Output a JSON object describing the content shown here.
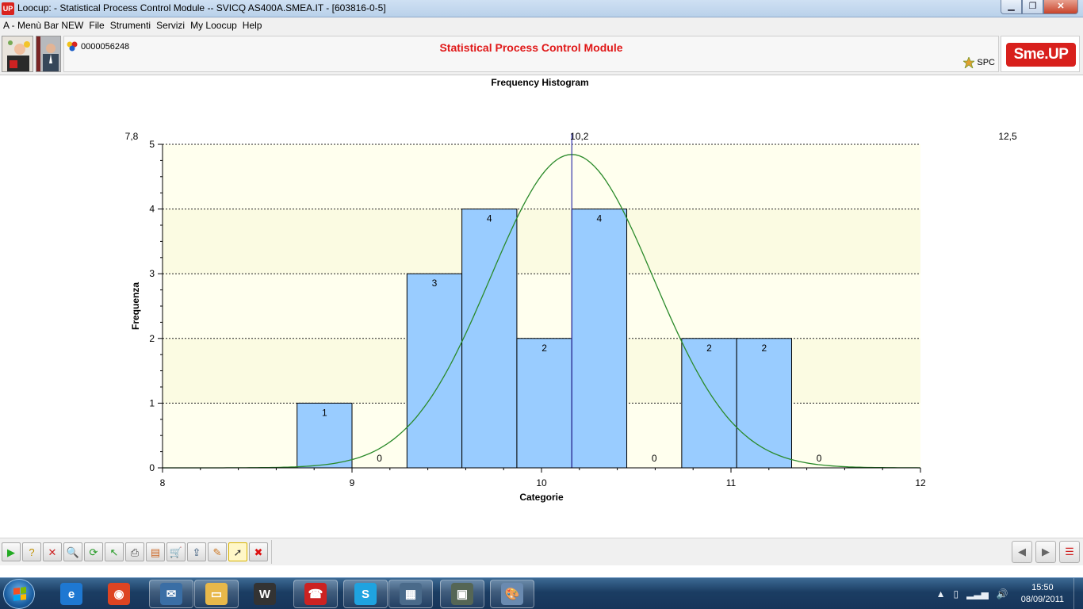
{
  "window": {
    "app_icon_text": "UP",
    "title": "Loocup:  - Statistical Process Control Module -- SVICQ AS400A.SMEA.IT - [603816-0-5]",
    "minimize_label": "▁",
    "maximize_label": "❐",
    "close_label": "✕"
  },
  "menubar": {
    "items": [
      "A - Menù Bar NEW",
      "File",
      "Strumenti",
      "Servizi",
      "My Loocup",
      "Help"
    ]
  },
  "header": {
    "session_id": "0000056248",
    "module_title": "Statistical Process Control Module",
    "spc_label": "SPC",
    "logo_text": "Sme.UP"
  },
  "chart_data": {
    "type": "bar",
    "title": "Frequency Histogram",
    "xlabel": "Categorie",
    "ylabel": "Frequenza",
    "xlim": [
      8,
      12
    ],
    "ylim": [
      0,
      5
    ],
    "x_ticks": [
      8,
      9,
      10,
      11,
      12
    ],
    "y_ticks": [
      0,
      1,
      2,
      3,
      4,
      5
    ],
    "bin_width": 0.29,
    "bins": [
      {
        "start": 8.71,
        "end": 9.0,
        "count": 1
      },
      {
        "start": 9.0,
        "end": 9.29,
        "count": 0
      },
      {
        "start": 9.29,
        "end": 9.58,
        "count": 3
      },
      {
        "start": 9.58,
        "end": 9.87,
        "count": 4
      },
      {
        "start": 9.87,
        "end": 10.16,
        "count": 2
      },
      {
        "start": 10.16,
        "end": 10.45,
        "count": 4
      },
      {
        "start": 10.45,
        "end": 10.74,
        "count": 0
      },
      {
        "start": 10.74,
        "end": 11.03,
        "count": 2
      },
      {
        "start": 11.03,
        "end": 11.32,
        "count": 2
      },
      {
        "start": 11.32,
        "end": 11.61,
        "count": 0
      }
    ],
    "mean": 10.16,
    "std_dev": 0.43,
    "top_labels": [
      {
        "text": "7,8",
        "x": 7.8
      },
      {
        "text": "10,2",
        "x": 10.2
      },
      {
        "text": "12,5",
        "x": 12.5
      }
    ],
    "normal_curve": true,
    "grid": "horizontal dotted",
    "colors": {
      "bar": "#99ccff",
      "curve": "#2a8a2a",
      "mean_line": "#3333aa",
      "band_light": "#ffffee",
      "band_dark": "#fbfbe2"
    }
  },
  "toolbar": {
    "buttons": [
      {
        "name": "execute-button",
        "glyph": "▶",
        "color": "#22aa22"
      },
      {
        "name": "help-button",
        "glyph": "?",
        "color": "#c09000"
      },
      {
        "name": "cancel-button",
        "glyph": "✕",
        "color": "#cc2222"
      },
      {
        "name": "search-button",
        "glyph": "🔍",
        "color": "#336699"
      },
      {
        "name": "refresh-button",
        "glyph": "⟳",
        "color": "#229922"
      },
      {
        "name": "back-button",
        "glyph": "↖",
        "color": "#229922"
      },
      {
        "name": "print-button",
        "glyph": "⎙",
        "color": "#444444"
      },
      {
        "name": "export-button",
        "glyph": "▤",
        "color": "#cc6622"
      },
      {
        "name": "cart-button",
        "glyph": "🛒",
        "color": "#333333"
      },
      {
        "name": "upload-button",
        "glyph": "⇪",
        "color": "#335577"
      },
      {
        "name": "tools-button",
        "glyph": "✎",
        "color": "#cc7722"
      },
      {
        "name": "select-button",
        "glyph": "➚",
        "color": "#333333"
      },
      {
        "name": "close-red-button",
        "glyph": "✖",
        "color": "#dd1111"
      }
    ],
    "nav_left": "◀",
    "nav_right": "▶",
    "menu": "☰"
  },
  "taskbar": {
    "apps": [
      {
        "name": "internet-explorer",
        "glyph": "e",
        "color": "#1e78d2"
      },
      {
        "name": "chrome",
        "glyph": "◉",
        "color": "#dd4422"
      },
      {
        "name": "thunderbird",
        "glyph": "✉",
        "color": "#3a6ea5"
      },
      {
        "name": "file-explorer",
        "glyph": "▭",
        "color": "#e8b84a"
      },
      {
        "name": "wordpress",
        "glyph": "W",
        "color": "#333333"
      },
      {
        "name": "phone-app",
        "glyph": "☎",
        "color": "#cc2222"
      },
      {
        "name": "skype",
        "glyph": "S",
        "color": "#1fa3e0"
      },
      {
        "name": "window-app",
        "glyph": "▦",
        "color": "#4a6a8a"
      },
      {
        "name": "network-app",
        "glyph": "▣",
        "color": "#556655"
      },
      {
        "name": "paint",
        "glyph": "🎨",
        "color": "#6a8ab0"
      }
    ],
    "time": "15:50",
    "date": "08/09/2011"
  }
}
